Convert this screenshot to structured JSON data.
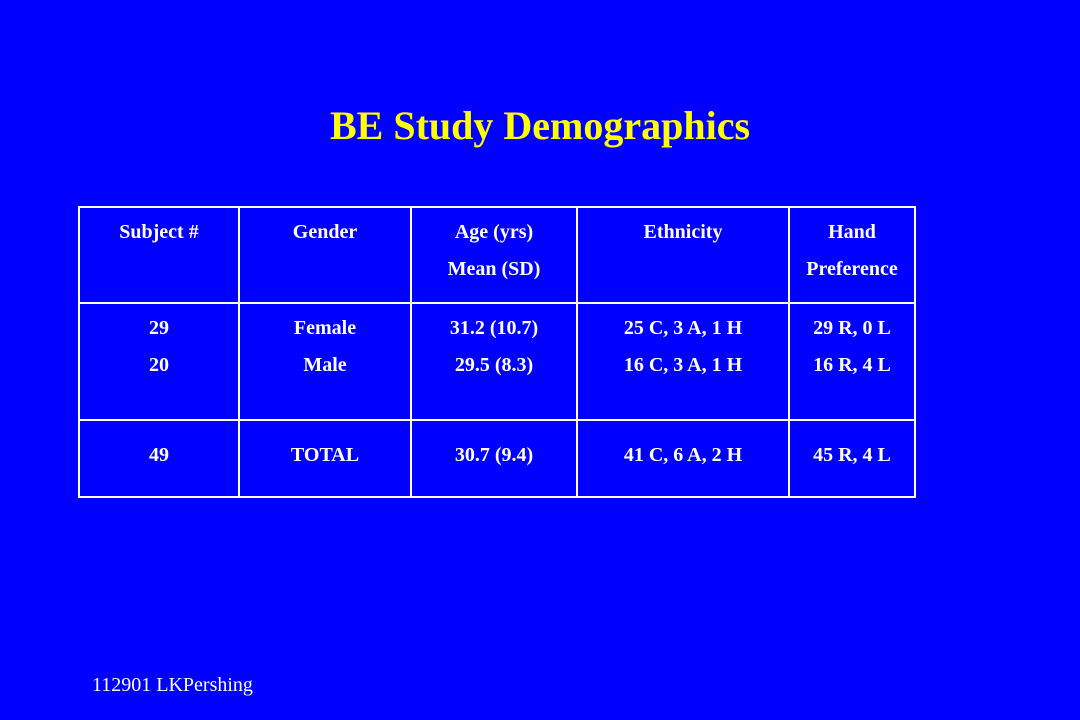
{
  "slide": {
    "title": "BE Study Demographics",
    "footer": "112901  LKPershing"
  },
  "table": {
    "headers": [
      [
        "Subject #"
      ],
      [
        "Gender"
      ],
      [
        "Age (yrs)",
        "Mean (SD)"
      ],
      [
        "Ethnicity"
      ],
      [
        "Hand",
        "Preference"
      ]
    ],
    "rows": [
      [
        [
          "29",
          "20"
        ],
        [
          "Female",
          "Male"
        ],
        [
          "31.2 (10.7)",
          "29.5 (8.3)"
        ],
        [
          "25 C, 3 A, 1 H",
          "16 C, 3 A, 1 H"
        ],
        [
          "29 R, 0 L",
          "16 R, 4 L"
        ]
      ],
      [
        [
          "49"
        ],
        [
          "TOTAL"
        ],
        [
          "30.7 (9.4)"
        ],
        [
          "41 C, 6 A, 2 H"
        ],
        [
          "45 R, 4 L"
        ]
      ]
    ]
  },
  "colors": {
    "background": "#0000ff",
    "title": "#ffff00",
    "text": "#ffffff"
  }
}
